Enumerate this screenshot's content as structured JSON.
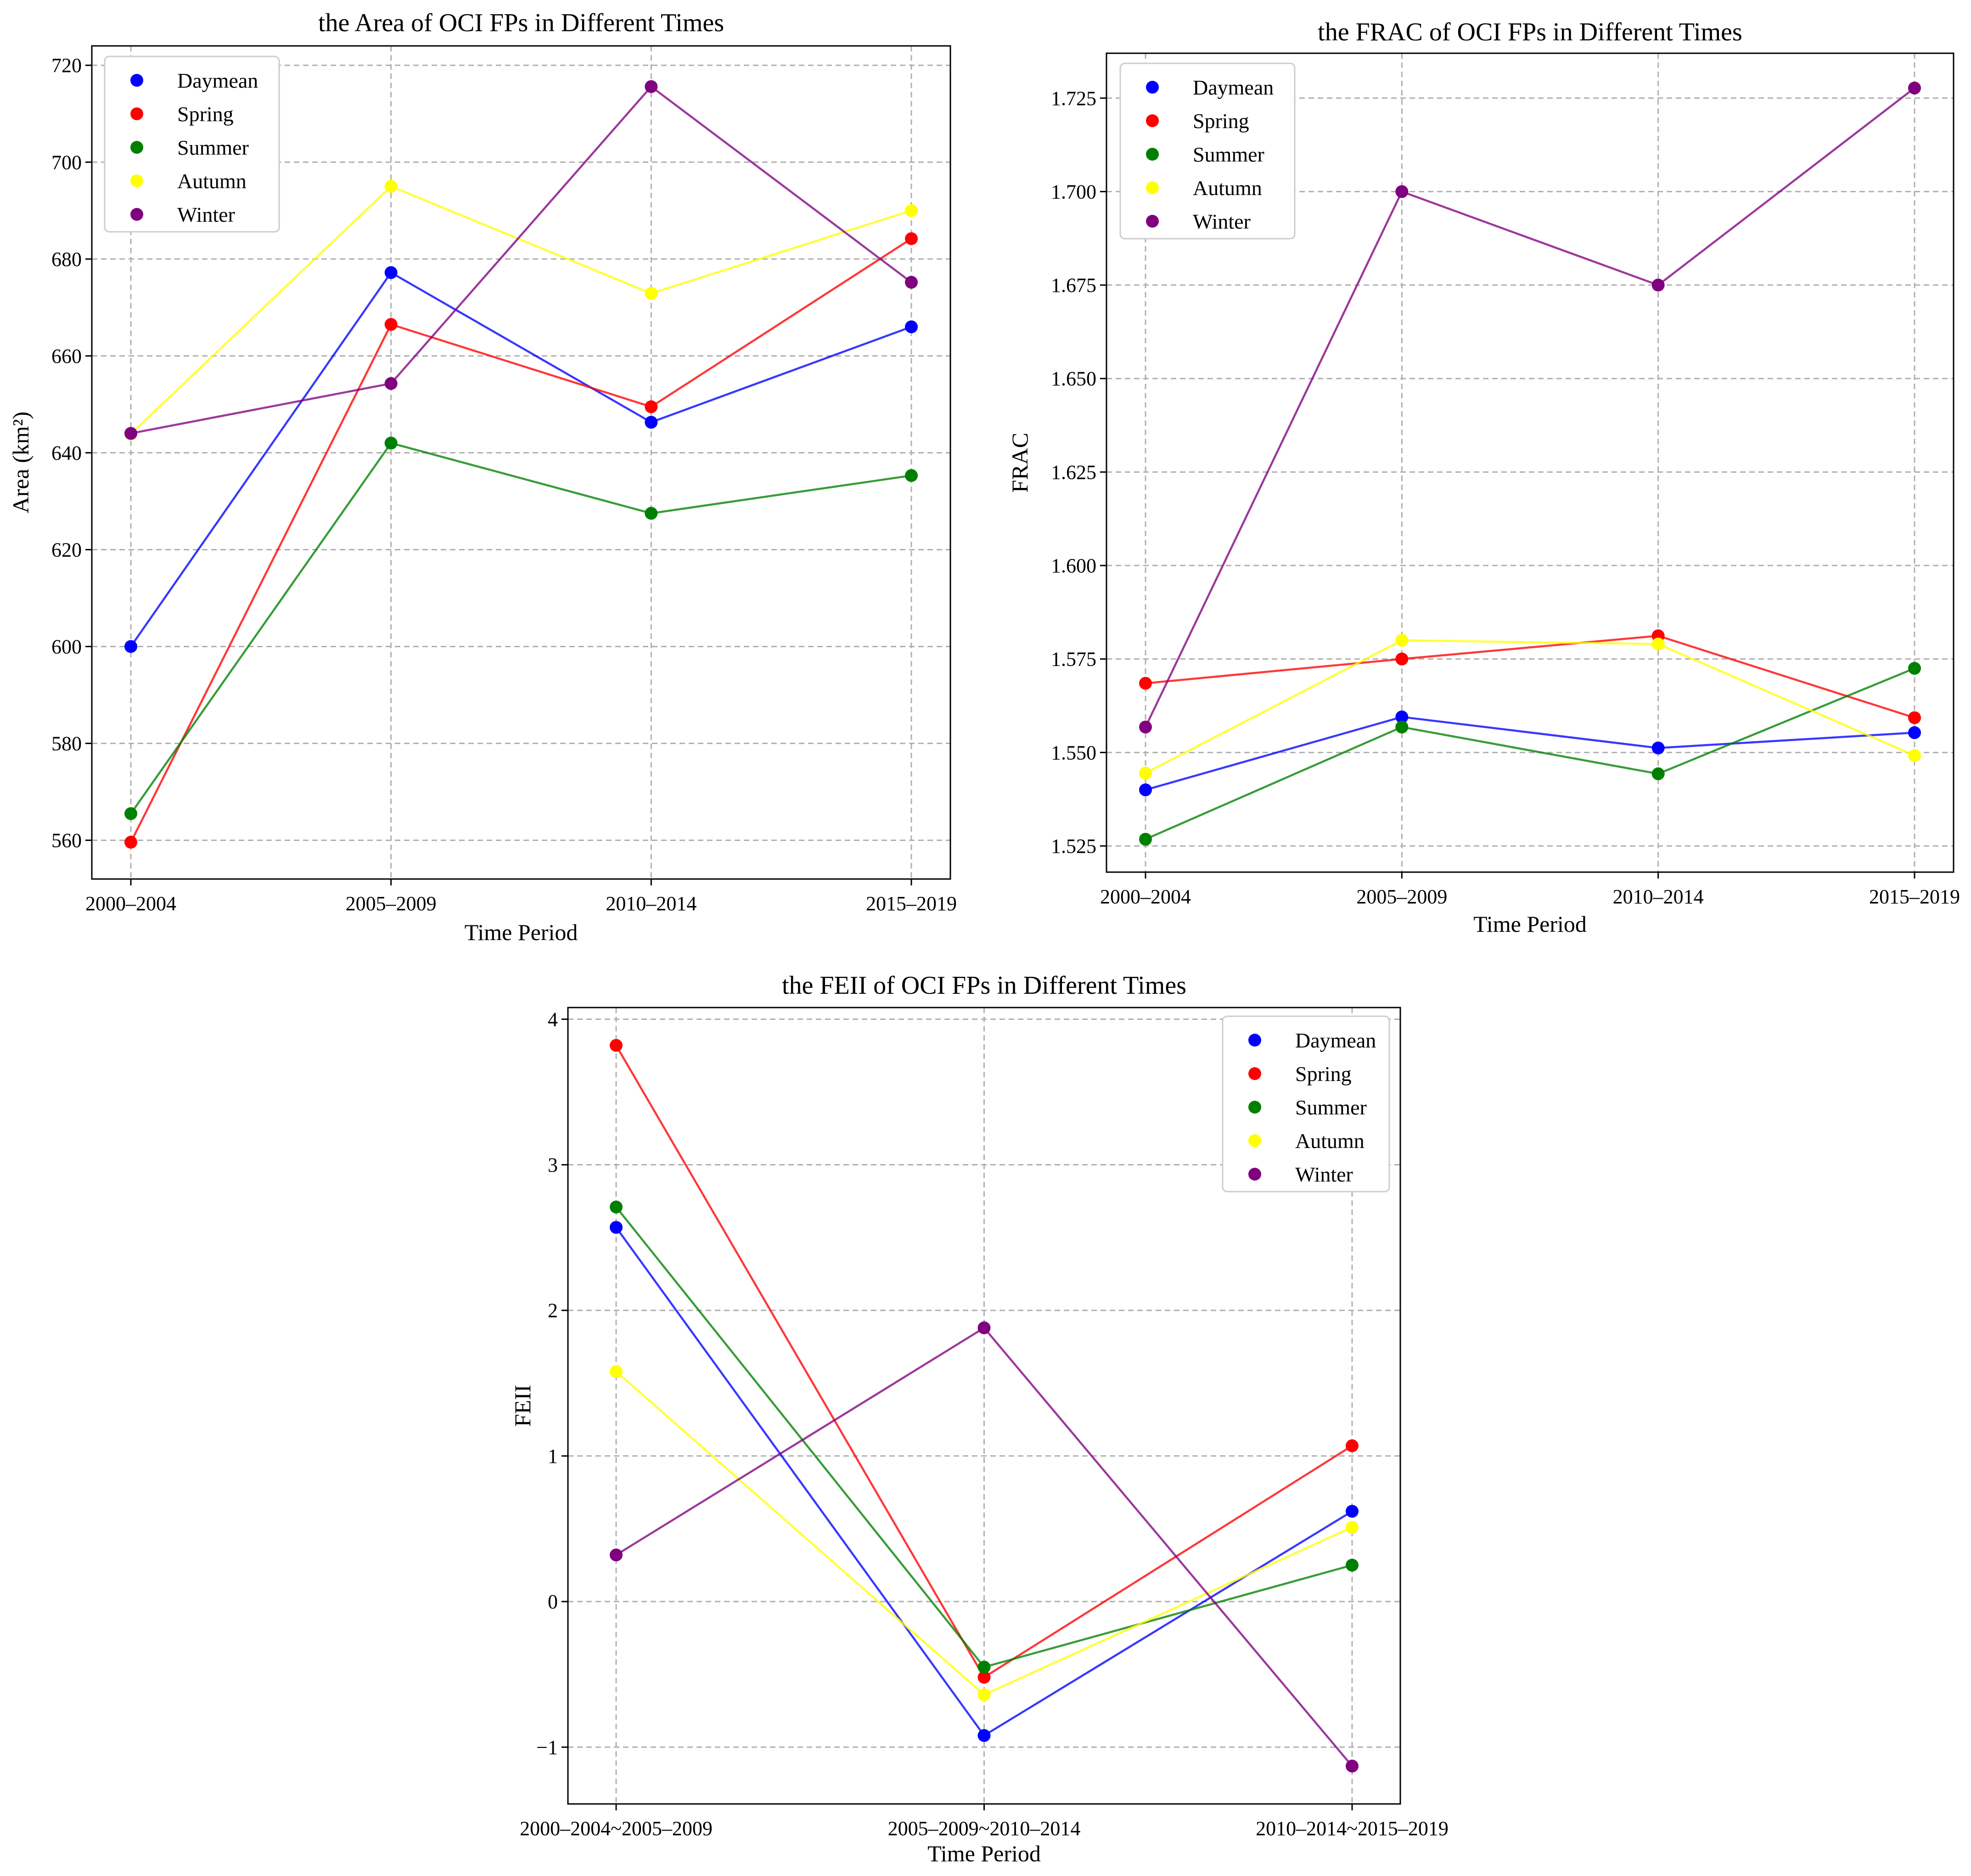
{
  "colors": {
    "Daymean": "#0000ff",
    "Spring": "#ff0000",
    "Summer": "#008000",
    "Autumn": "#ffff00",
    "Winter": "#800080"
  },
  "chart_data": [
    {
      "type": "line",
      "title": "the Area of OCI FPs in Different Times",
      "xlabel": "Time Period",
      "ylabel": "Area (km²)",
      "categories": [
        "2000–2004",
        "2005–2009",
        "2010–2014",
        "2015–2019"
      ],
      "ylim": [
        552,
        724
      ],
      "yticks": [
        560,
        580,
        600,
        620,
        640,
        660,
        680,
        700,
        720
      ],
      "ytick_labels": [
        "560",
        "580",
        "600",
        "620",
        "640",
        "660",
        "680",
        "700",
        "720"
      ],
      "grid": true,
      "legend": "top-left",
      "series": [
        {
          "name": "Daymean",
          "values": [
            600.0,
            677.2,
            646.3,
            666.0
          ]
        },
        {
          "name": "Spring",
          "values": [
            559.6,
            666.5,
            649.5,
            684.2
          ]
        },
        {
          "name": "Summer",
          "values": [
            565.5,
            642.0,
            627.5,
            635.3
          ]
        },
        {
          "name": "Autumn",
          "values": [
            643.9,
            695.0,
            672.9,
            690.0
          ]
        },
        {
          "name": "Winter",
          "values": [
            644.0,
            654.3,
            715.6,
            675.2
          ]
        }
      ]
    },
    {
      "type": "line",
      "title": "the FRAC of OCI FPs in Different Times",
      "xlabel": "Time Period",
      "ylabel": "FRAC",
      "categories": [
        "2000–2004",
        "2005–2009",
        "2010–2014",
        "2015–2019"
      ],
      "ylim": [
        1.518,
        1.737
      ],
      "yticks": [
        1.525,
        1.55,
        1.575,
        1.6,
        1.625,
        1.65,
        1.675,
        1.7,
        1.725
      ],
      "ytick_labels": [
        "1.525",
        "1.550",
        "1.575",
        "1.600",
        "1.625",
        "1.650",
        "1.675",
        "1.700",
        "1.725"
      ],
      "grid": true,
      "legend": "top-left",
      "series": [
        {
          "name": "Daymean",
          "values": [
            1.54,
            1.5595,
            1.5512,
            1.5553
          ]
        },
        {
          "name": "Spring",
          "values": [
            1.5685,
            1.575,
            1.5812,
            1.5593
          ]
        },
        {
          "name": "Summer",
          "values": [
            1.5268,
            1.5568,
            1.5443,
            1.5725
          ]
        },
        {
          "name": "Autumn",
          "values": [
            1.5445,
            1.58,
            1.579,
            1.5492
          ]
        },
        {
          "name": "Winter",
          "values": [
            1.5568,
            1.7,
            1.675,
            1.7277
          ]
        }
      ]
    },
    {
      "type": "line",
      "title": "the FEII of OCI FPs in Different Times",
      "xlabel": "Time Period",
      "ylabel": "FEII",
      "categories": [
        "2000–2004~2005–2009",
        "2005–2009~2010–2014",
        "2010–2014~2015–2019"
      ],
      "ylim": [
        -1.39,
        4.08
      ],
      "yticks": [
        -1,
        0,
        1,
        2,
        3,
        4
      ],
      "ytick_labels": [
        "−1",
        "0",
        "1",
        "2",
        "3",
        "4"
      ],
      "grid": true,
      "legend": "top-right",
      "series": [
        {
          "name": "Daymean",
          "values": [
            2.57,
            -0.92,
            0.62
          ]
        },
        {
          "name": "Spring",
          "values": [
            3.82,
            -0.52,
            1.07
          ]
        },
        {
          "name": "Summer",
          "values": [
            2.71,
            -0.45,
            0.25
          ]
        },
        {
          "name": "Autumn",
          "values": [
            1.58,
            -0.64,
            0.51
          ]
        },
        {
          "name": "Winter",
          "values": [
            0.32,
            1.88,
            -1.13
          ]
        }
      ]
    }
  ]
}
